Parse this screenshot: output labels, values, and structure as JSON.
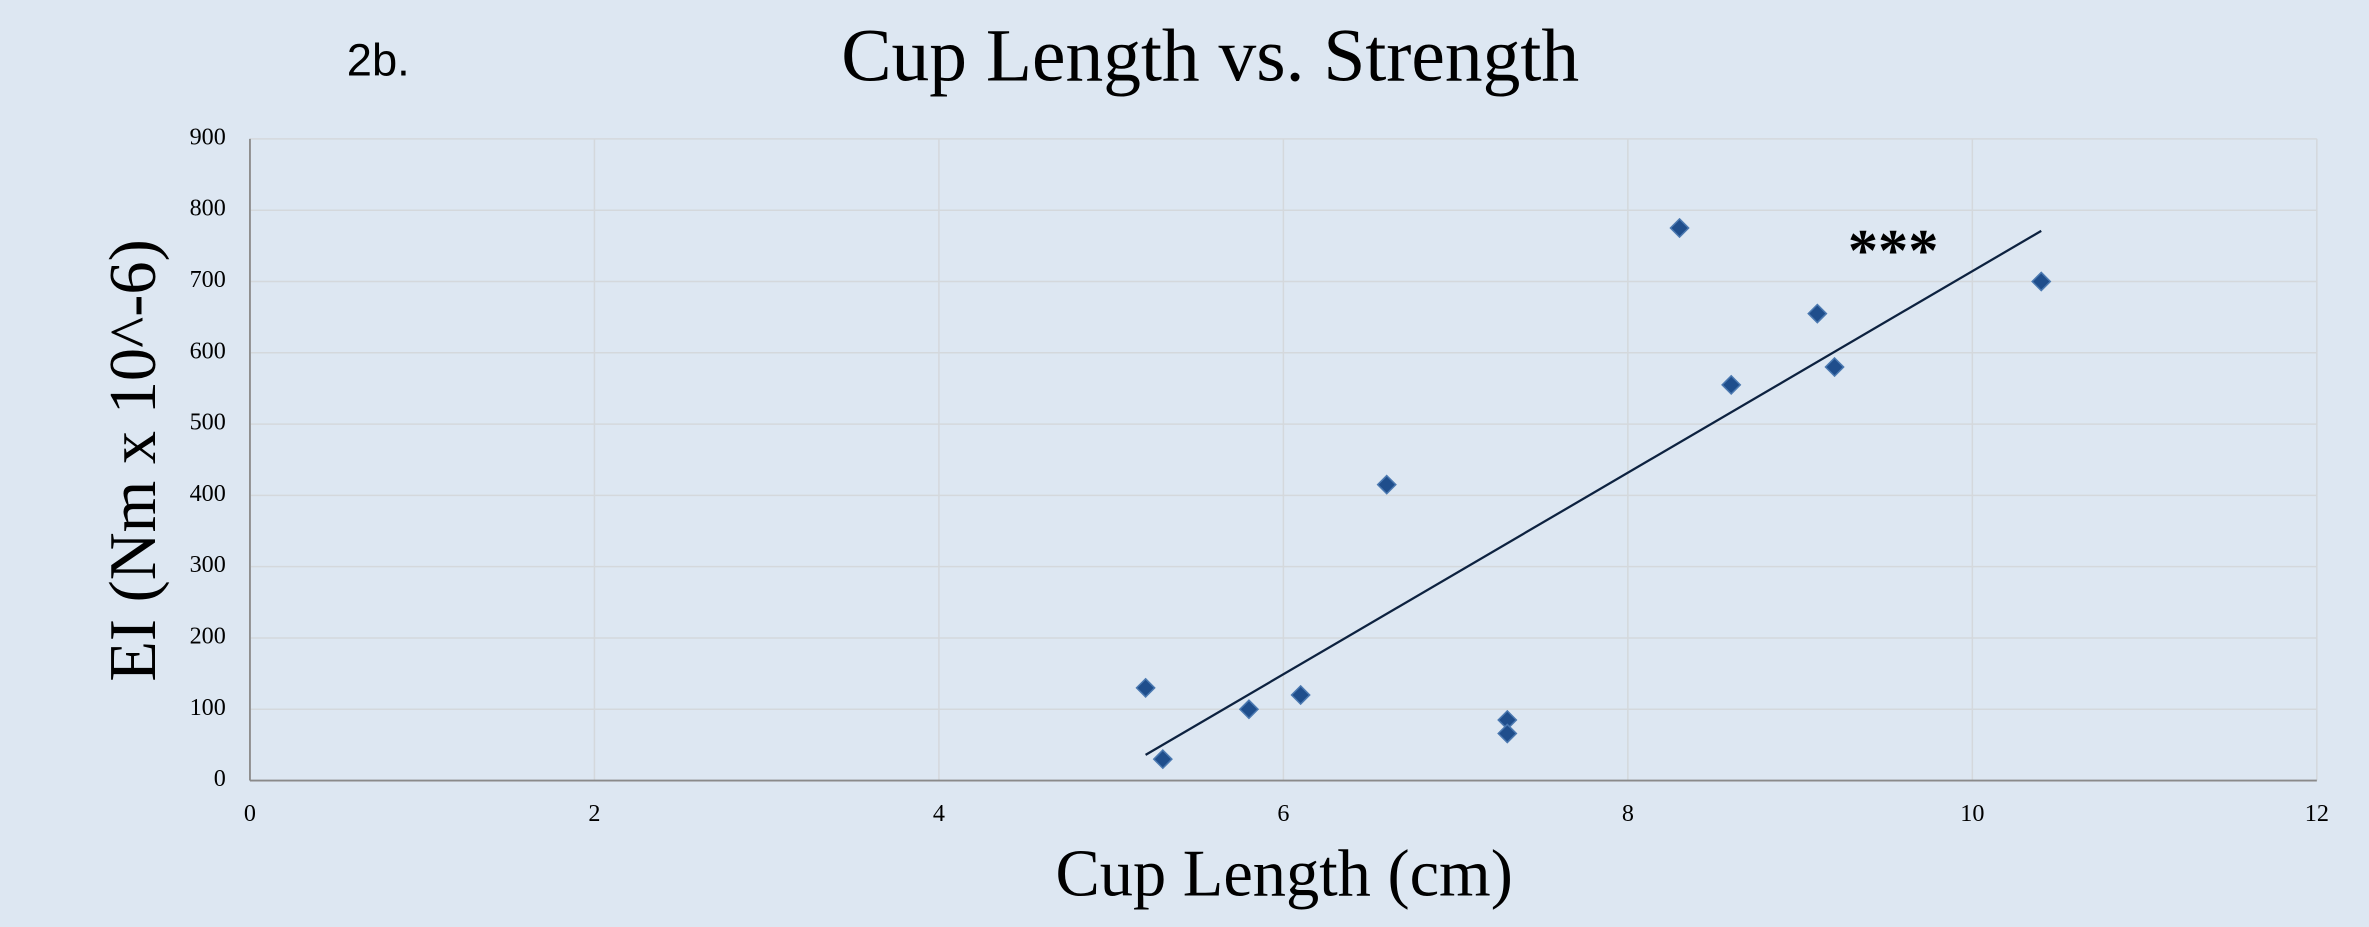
{
  "chart_data": {
    "type": "scatter",
    "label": "2b.",
    "title": "Cup Length vs. Strength",
    "x_label": "Cup Length (cm)",
    "y_label": "EI (Nm x 10^-6)",
    "annotation": "***",
    "x": [
      5.2,
      5.3,
      5.8,
      6.1,
      6.6,
      7.3,
      7.3,
      8.3,
      8.6,
      9.1,
      9.2,
      10.4
    ],
    "series": [
      {
        "name": "EI",
        "color": "#1f4e8c",
        "values": [
          130,
          30,
          100,
          120,
          415,
          85,
          66,
          775,
          555,
          655,
          580,
          700
        ]
      }
    ],
    "trendline": {
      "x": [
        5.2,
        10.4
      ],
      "values": [
        36,
        771
      ],
      "color": "#0d2240"
    },
    "xlim": [
      0,
      12
    ],
    "xticks": [
      0,
      2,
      4,
      6,
      8,
      10,
      12
    ],
    "ylim": [
      0,
      900
    ],
    "yticks": [
      0,
      100,
      200,
      300,
      400,
      500,
      600,
      700,
      800,
      900
    ],
    "grid": true
  }
}
